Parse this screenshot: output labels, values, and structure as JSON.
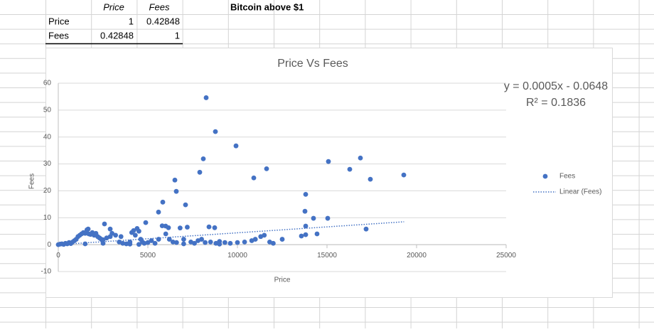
{
  "table": {
    "header": [
      "Price",
      "Fees"
    ],
    "rows": [
      [
        "Price",
        1,
        0.42848
      ],
      [
        "Fees",
        0.42848,
        1
      ]
    ]
  },
  "sheet_note": "Bitcoin above $1",
  "chart_data": {
    "type": "scatter",
    "title": "Price Vs Fees",
    "x_label": "Price",
    "y_label": "Fees",
    "series": [
      {
        "name": "Fees",
        "color": "#4472c4",
        "x": [
          8254,
          8770,
          9921,
          8095,
          7897,
          6508,
          6587,
          10913,
          11627,
          15079,
          16270,
          16865,
          17420,
          19286,
          13810,
          13770,
          14246,
          15040,
          13810,
          17183,
          14444,
          13571,
          13810,
          7103,
          5833,
          5595,
          4881,
          2579,
          1667,
          5992,
          6150,
          8413,
          8730,
          2897,
          0,
          100,
          200,
          300,
          400,
          500,
          600,
          700,
          800,
          900,
          1000,
          1100,
          1200,
          1300,
          1400,
          1500,
          1600,
          1700,
          1800,
          1900,
          2000,
          2100,
          2200,
          2300,
          2400,
          2500,
          2700,
          2900,
          3000,
          3200,
          3400,
          3500,
          3600,
          3800,
          4000,
          4100,
          4200,
          4300,
          4400,
          4500,
          4600,
          4700,
          4800,
          5000,
          5200,
          5400,
          5600,
          5800,
          6000,
          6200,
          6400,
          6600,
          6800,
          7000,
          7200,
          7400,
          7600,
          7800,
          8000,
          8200,
          8500,
          8800,
          9000,
          9300,
          9600,
          10000,
          10400,
          10800,
          11000,
          11300,
          11500,
          11800,
          12000,
          12500,
          1500,
          2500,
          4000,
          4500,
          7000,
          9000
        ],
        "values": [
          54.6,
          42,
          36.7,
          31.9,
          26.9,
          24,
          19.8,
          24.8,
          28.2,
          30.9,
          28,
          32.2,
          24.3,
          25.9,
          18.7,
          12.4,
          9.8,
          9.8,
          6.9,
          5.8,
          4,
          3.2,
          3.7,
          14.8,
          15.8,
          12.1,
          8.2,
          7.7,
          5.8,
          6.9,
          6.3,
          6.6,
          6.3,
          5.8,
          0,
          0.2,
          0.3,
          0.1,
          0.5,
          0.3,
          0.8,
          0.4,
          1,
          1.5,
          2,
          3,
          3.5,
          4,
          4.5,
          4.2,
          5.5,
          4,
          3.8,
          4.5,
          3.5,
          4.2,
          3,
          2.5,
          2,
          1.8,
          2.5,
          3,
          4.2,
          3.5,
          1,
          3,
          0.5,
          0.3,
          1,
          4.5,
          5.2,
          3.5,
          6,
          5,
          2,
          1,
          0.5,
          0.8,
          1.5,
          0.5,
          2,
          7,
          4,
          2,
          1,
          0.8,
          6.2,
          2,
          6.5,
          1,
          0.5,
          1.5,
          2,
          0.8,
          1,
          0.5,
          1.2,
          0.8,
          0.5,
          0.8,
          1,
          1.5,
          2,
          3,
          3.5,
          1,
          0.5,
          2,
          0.3,
          0.5,
          0.2,
          0.1,
          0.3,
          0.2
        ]
      }
    ],
    "trendline": {
      "name": "Linear (Fees)",
      "color": "#4472c4",
      "x": [
        0,
        19300
      ],
      "values": [
        0,
        8.5
      ]
    },
    "annotations": [
      "y = 0.0005x - 0.0648",
      "R² = 0.1836"
    ],
    "xlim": [
      0,
      25000
    ],
    "xticks": [
      0,
      5000,
      10000,
      15000,
      20000,
      25000
    ],
    "ylim": [
      -10,
      60
    ],
    "yticks": [
      -10,
      0,
      10,
      20,
      30,
      40,
      50,
      60
    ],
    "grid": true,
    "legend": "right"
  }
}
